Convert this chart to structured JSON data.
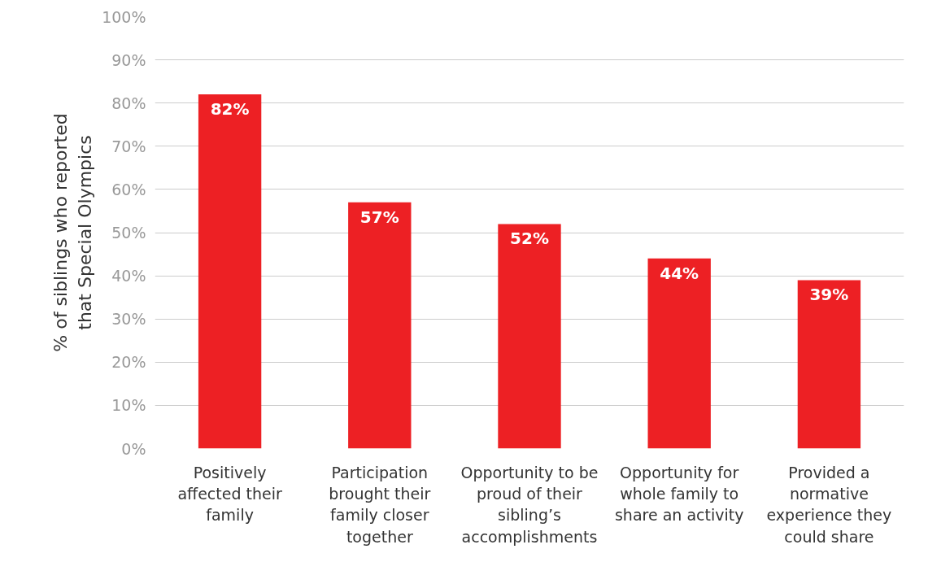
{
  "chart_data": {
    "type": "bar",
    "ylabel": "% of siblings who reported\nthat Special Olympics",
    "categories": [
      "Positively affected their family",
      "Participation brought their family closer together",
      "Opportunity to be proud of their sibling’s accomplishments",
      "Opportunity for whole family to share an activity",
      "Provided a normative experience they could share"
    ],
    "values": [
      82,
      57,
      52,
      44,
      39
    ],
    "value_labels": [
      "82%",
      "57%",
      "52%",
      "44%",
      "39%"
    ],
    "color": "#ed2024",
    "ylim": [
      0,
      100
    ],
    "yticks": [
      {
        "value": 0,
        "label": "0%"
      },
      {
        "value": 10,
        "label": "10%"
      },
      {
        "value": 20,
        "label": "20%"
      },
      {
        "value": 30,
        "label": "30%"
      },
      {
        "value": 40,
        "label": "40%"
      },
      {
        "value": 50,
        "label": "50%"
      },
      {
        "value": 60,
        "label": "60%"
      },
      {
        "value": 70,
        "label": "70%"
      },
      {
        "value": 80,
        "label": "80%"
      },
      {
        "value": 90,
        "label": "90%"
      },
      {
        "value": 100,
        "label": "100%"
      }
    ],
    "grid": "y"
  }
}
